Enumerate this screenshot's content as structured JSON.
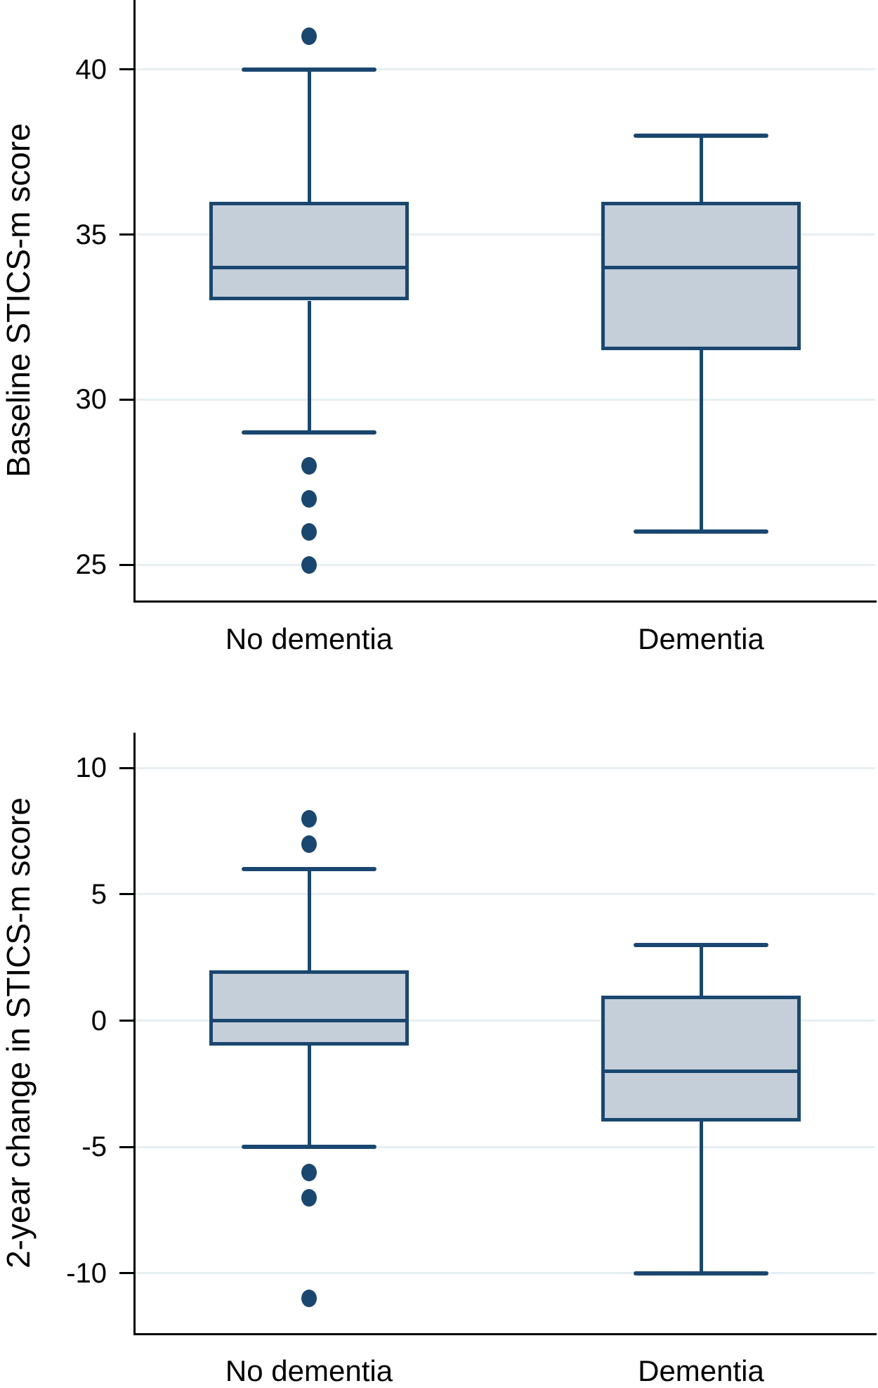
{
  "figure": {
    "background": "#ffffff",
    "colors": {
      "box_fill": "#c5cfda",
      "box_border": "#1a476f",
      "whisker": "#1a476f",
      "outlier_dot": "#1a476f",
      "gridline": "#e7eff2",
      "axis": "#000000",
      "text": "#000000"
    }
  },
  "chart_data": [
    {
      "type": "box",
      "title": "",
      "ylabel": "Baseline STICS-m score",
      "xlabel": "",
      "categories": [
        "No dementia",
        "Dementia"
      ],
      "y_ticks": [
        40,
        35,
        30,
        25
      ],
      "y_tick_labels": [
        "40",
        "35",
        "30",
        "25"
      ],
      "ylim": [
        23.9,
        42.1
      ],
      "grid": true,
      "legend": "none",
      "series": [
        {
          "name": "No dementia",
          "whisker_low": 29,
          "q1": 33,
          "median": 34,
          "q3": 36,
          "whisker_high": 40,
          "outliers": [
            41,
            28,
            27,
            26,
            25
          ]
        },
        {
          "name": "Dementia",
          "whisker_low": 26,
          "q1": 31.5,
          "median": 34,
          "q3": 36,
          "whisker_high": 38,
          "outliers": []
        }
      ]
    },
    {
      "type": "box",
      "title": "",
      "ylabel": "2-year change in STICS-m score",
      "xlabel": "",
      "categories": [
        "No dementia",
        "Dementia"
      ],
      "y_ticks": [
        10,
        5,
        0,
        -5,
        -10
      ],
      "y_tick_labels": [
        "10",
        "5",
        "0",
        "-5",
        "-10"
      ],
      "ylim": [
        -12.4,
        11.4
      ],
      "grid": true,
      "legend": "none",
      "series": [
        {
          "name": "No dementia",
          "whisker_low": -5,
          "q1": -1,
          "median": 0,
          "q3": 2,
          "whisker_high": 6,
          "outliers": [
            8,
            7,
            -6,
            -7,
            -11
          ]
        },
        {
          "name": "Dementia",
          "whisker_low": -10,
          "q1": -4,
          "median": -2,
          "q3": 1,
          "whisker_high": 3,
          "outliers": []
        }
      ]
    }
  ]
}
